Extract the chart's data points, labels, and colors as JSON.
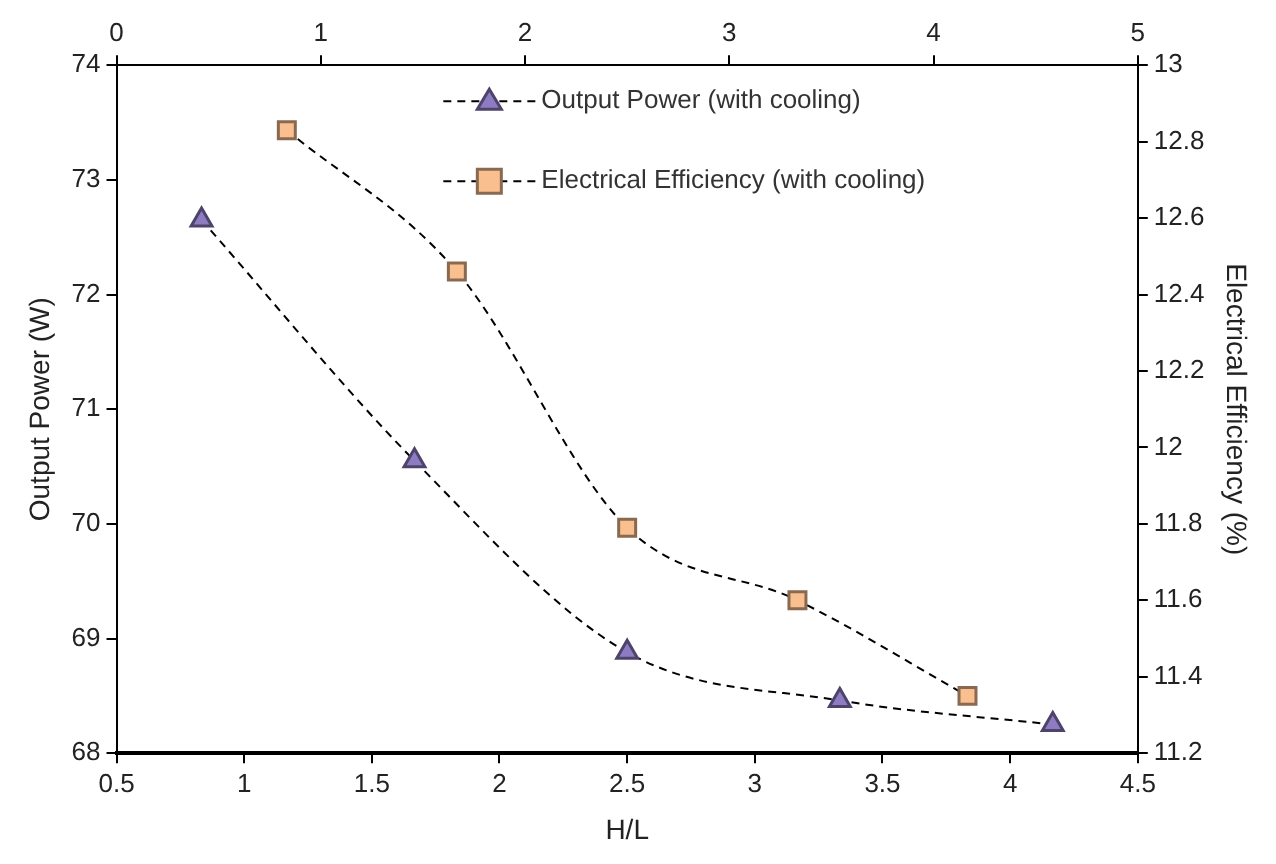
{
  "chart_data": {
    "type": "line",
    "xlabel": "H/L",
    "ylabel": "Output Power (W)",
    "y2label": "Electrical Efficiency (%)",
    "xlim": [
      0.5,
      4.5
    ],
    "xticks": [
      0.5,
      1,
      1.5,
      2,
      2.5,
      3,
      3.5,
      4,
      4.5
    ],
    "x2lim": [
      0,
      5
    ],
    "x2ticks": [
      0,
      1,
      2,
      3,
      4,
      5
    ],
    "ylim": [
      68,
      74
    ],
    "yticks": [
      68,
      69,
      70,
      71,
      72,
      73,
      74
    ],
    "y2lim": [
      11.2,
      13
    ],
    "y2ticks": [
      11.2,
      11.4,
      11.6,
      11.8,
      12,
      12.2,
      12.4,
      12.6,
      12.8,
      13
    ],
    "grid": false,
    "legend": "top",
    "line_style": "dashed",
    "series": [
      {
        "name": "Output Power (with cooling)",
        "color": "#8e7cc3",
        "marker": "triangle",
        "x": [
          0.833,
          1.667,
          2.5,
          3.333,
          4.167
        ],
        "values": [
          72.65,
          70.55,
          68.88,
          68.46,
          68.25
        ]
      },
      {
        "name": "Electrical Efficiency (with cooling)",
        "color": "#f9bf8f",
        "marker": "square",
        "axis": "y2",
        "x": [
          1.167,
          1.833,
          2.5,
          3.167,
          3.833
        ],
        "values": [
          12.83,
          12.46,
          11.79,
          11.6,
          11.35
        ]
      }
    ]
  }
}
